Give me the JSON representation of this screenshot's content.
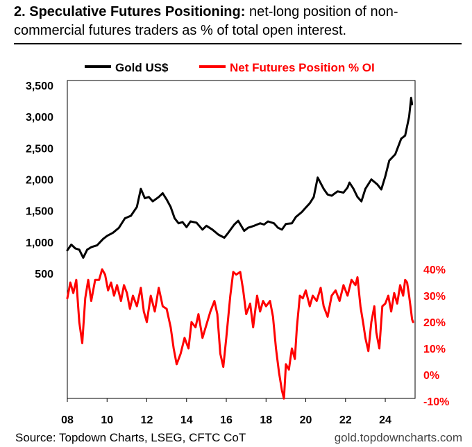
{
  "header": {
    "title_bold": "2. Speculative Futures Positioning:",
    "title_rest": " net-long position of non-commercial futures traders as % of total open interest."
  },
  "footer": {
    "source": "Source: Topdown Charts, LSEG, CFTC CoT",
    "site": "gold.topdowncharts.com"
  },
  "colors": {
    "gold": "#000000",
    "net": "#ff0000"
  },
  "chart_data": {
    "type": "line",
    "grid": false,
    "legend_position": "top",
    "x_label": "",
    "x_ticks": [
      "08",
      "10",
      "12",
      "14",
      "16",
      "18",
      "20",
      "22",
      "24"
    ],
    "x_range": [
      2008,
      2025.5
    ],
    "y_left": {
      "label": "",
      "ticks": [
        "500",
        "1,000",
        "1,500",
        "2,000",
        "2,500",
        "3,000",
        "3,500"
      ],
      "range": [
        500,
        3500
      ]
    },
    "y_right": {
      "label": "",
      "ticks": [
        "40%",
        "30%",
        "20%",
        "10%",
        "0%",
        "-10%"
      ],
      "range": [
        -10,
        40
      ]
    },
    "series": [
      {
        "name": "Gold US$",
        "axis": "left",
        "color": "#000000",
        "points": [
          [
            2008.0,
            870
          ],
          [
            2008.2,
            960
          ],
          [
            2008.4,
            900
          ],
          [
            2008.6,
            880
          ],
          [
            2008.8,
            750
          ],
          [
            2009.0,
            880
          ],
          [
            2009.2,
            920
          ],
          [
            2009.5,
            950
          ],
          [
            2009.8,
            1050
          ],
          [
            2010.0,
            1100
          ],
          [
            2010.3,
            1150
          ],
          [
            2010.6,
            1230
          ],
          [
            2010.9,
            1380
          ],
          [
            2011.2,
            1420
          ],
          [
            2011.5,
            1560
          ],
          [
            2011.7,
            1850
          ],
          [
            2011.9,
            1700
          ],
          [
            2012.1,
            1720
          ],
          [
            2012.3,
            1650
          ],
          [
            2012.6,
            1720
          ],
          [
            2012.8,
            1780
          ],
          [
            2013.0,
            1680
          ],
          [
            2013.2,
            1560
          ],
          [
            2013.4,
            1380
          ],
          [
            2013.6,
            1300
          ],
          [
            2013.8,
            1320
          ],
          [
            2014.0,
            1240
          ],
          [
            2014.2,
            1330
          ],
          [
            2014.5,
            1310
          ],
          [
            2014.8,
            1200
          ],
          [
            2015.0,
            1260
          ],
          [
            2015.3,
            1200
          ],
          [
            2015.6,
            1120
          ],
          [
            2015.9,
            1070
          ],
          [
            2016.1,
            1150
          ],
          [
            2016.4,
            1280
          ],
          [
            2016.6,
            1340
          ],
          [
            2016.9,
            1180
          ],
          [
            2017.1,
            1230
          ],
          [
            2017.4,
            1260
          ],
          [
            2017.7,
            1300
          ],
          [
            2017.9,
            1280
          ],
          [
            2018.1,
            1330
          ],
          [
            2018.4,
            1300
          ],
          [
            2018.6,
            1230
          ],
          [
            2018.8,
            1200
          ],
          [
            2019.0,
            1290
          ],
          [
            2019.3,
            1300
          ],
          [
            2019.5,
            1400
          ],
          [
            2019.8,
            1480
          ],
          [
            2020.0,
            1550
          ],
          [
            2020.2,
            1620
          ],
          [
            2020.4,
            1720
          ],
          [
            2020.6,
            2030
          ],
          [
            2020.9,
            1850
          ],
          [
            2021.1,
            1760
          ],
          [
            2021.3,
            1740
          ],
          [
            2021.6,
            1810
          ],
          [
            2021.9,
            1790
          ],
          [
            2022.1,
            1870
          ],
          [
            2022.2,
            1950
          ],
          [
            2022.4,
            1850
          ],
          [
            2022.6,
            1720
          ],
          [
            2022.8,
            1650
          ],
          [
            2023.0,
            1850
          ],
          [
            2023.3,
            2000
          ],
          [
            2023.6,
            1920
          ],
          [
            2023.8,
            1840
          ],
          [
            2024.0,
            2050
          ],
          [
            2024.2,
            2300
          ],
          [
            2024.5,
            2400
          ],
          [
            2024.8,
            2650
          ],
          [
            2025.0,
            2700
          ],
          [
            2025.2,
            3000
          ],
          [
            2025.3,
            3300
          ],
          [
            2025.35,
            3200
          ]
        ]
      },
      {
        "name": "Net Futures Position % OI",
        "axis": "right",
        "color": "#ff0000",
        "points": [
          [
            2008.0,
            29
          ],
          [
            2008.15,
            35
          ],
          [
            2008.3,
            31
          ],
          [
            2008.45,
            36
          ],
          [
            2008.6,
            20
          ],
          [
            2008.75,
            12
          ],
          [
            2008.9,
            29
          ],
          [
            2009.05,
            36
          ],
          [
            2009.2,
            28
          ],
          [
            2009.4,
            36
          ],
          [
            2009.6,
            36
          ],
          [
            2009.75,
            40
          ],
          [
            2009.9,
            38
          ],
          [
            2010.05,
            32
          ],
          [
            2010.2,
            35
          ],
          [
            2010.35,
            30
          ],
          [
            2010.5,
            34
          ],
          [
            2010.7,
            28
          ],
          [
            2010.85,
            34
          ],
          [
            2011.0,
            31
          ],
          [
            2011.15,
            25
          ],
          [
            2011.3,
            30
          ],
          [
            2011.5,
            26
          ],
          [
            2011.7,
            33
          ],
          [
            2011.85,
            24
          ],
          [
            2012.0,
            20
          ],
          [
            2012.2,
            30
          ],
          [
            2012.4,
            24
          ],
          [
            2012.6,
            33
          ],
          [
            2012.8,
            26
          ],
          [
            2013.0,
            25
          ],
          [
            2013.2,
            18
          ],
          [
            2013.35,
            10
          ],
          [
            2013.5,
            4
          ],
          [
            2013.7,
            8
          ],
          [
            2013.9,
            14
          ],
          [
            2014.1,
            10
          ],
          [
            2014.25,
            20
          ],
          [
            2014.45,
            18
          ],
          [
            2014.6,
            23
          ],
          [
            2014.8,
            14
          ],
          [
            2015.0,
            19
          ],
          [
            2015.2,
            24
          ],
          [
            2015.4,
            28
          ],
          [
            2015.55,
            23
          ],
          [
            2015.7,
            8
          ],
          [
            2015.85,
            3
          ],
          [
            2016.0,
            14
          ],
          [
            2016.2,
            30
          ],
          [
            2016.35,
            39
          ],
          [
            2016.5,
            38
          ],
          [
            2016.7,
            39
          ],
          [
            2016.85,
            32
          ],
          [
            2017.0,
            23
          ],
          [
            2017.2,
            27
          ],
          [
            2017.35,
            18
          ],
          [
            2017.55,
            30
          ],
          [
            2017.7,
            24
          ],
          [
            2017.85,
            28
          ],
          [
            2018.0,
            26
          ],
          [
            2018.2,
            28
          ],
          [
            2018.35,
            22
          ],
          [
            2018.5,
            10
          ],
          [
            2018.65,
            1
          ],
          [
            2018.8,
            -6
          ],
          [
            2018.9,
            -9
          ],
          [
            2019.0,
            4
          ],
          [
            2019.15,
            2
          ],
          [
            2019.3,
            10
          ],
          [
            2019.45,
            6
          ],
          [
            2019.55,
            18
          ],
          [
            2019.7,
            30
          ],
          [
            2019.85,
            29
          ],
          [
            2020.0,
            32
          ],
          [
            2020.2,
            26
          ],
          [
            2020.35,
            30
          ],
          [
            2020.55,
            28
          ],
          [
            2020.75,
            33
          ],
          [
            2020.9,
            26
          ],
          [
            2021.1,
            22
          ],
          [
            2021.3,
            30
          ],
          [
            2021.5,
            32
          ],
          [
            2021.7,
            28
          ],
          [
            2021.9,
            34
          ],
          [
            2022.1,
            30
          ],
          [
            2022.3,
            36
          ],
          [
            2022.5,
            34
          ],
          [
            2022.6,
            37
          ],
          [
            2022.75,
            26
          ],
          [
            2022.9,
            19
          ],
          [
            2023.0,
            14
          ],
          [
            2023.15,
            9
          ],
          [
            2023.3,
            20
          ],
          [
            2023.45,
            26
          ],
          [
            2023.55,
            16
          ],
          [
            2023.7,
            10
          ],
          [
            2023.85,
            26
          ],
          [
            2024.0,
            27
          ],
          [
            2024.15,
            30
          ],
          [
            2024.3,
            24
          ],
          [
            2024.45,
            31
          ],
          [
            2024.6,
            27
          ],
          [
            2024.75,
            34
          ],
          [
            2024.9,
            30
          ],
          [
            2025.0,
            36
          ],
          [
            2025.1,
            35
          ],
          [
            2025.2,
            30
          ],
          [
            2025.3,
            24
          ],
          [
            2025.35,
            21
          ],
          [
            2025.4,
            20
          ]
        ]
      }
    ]
  }
}
